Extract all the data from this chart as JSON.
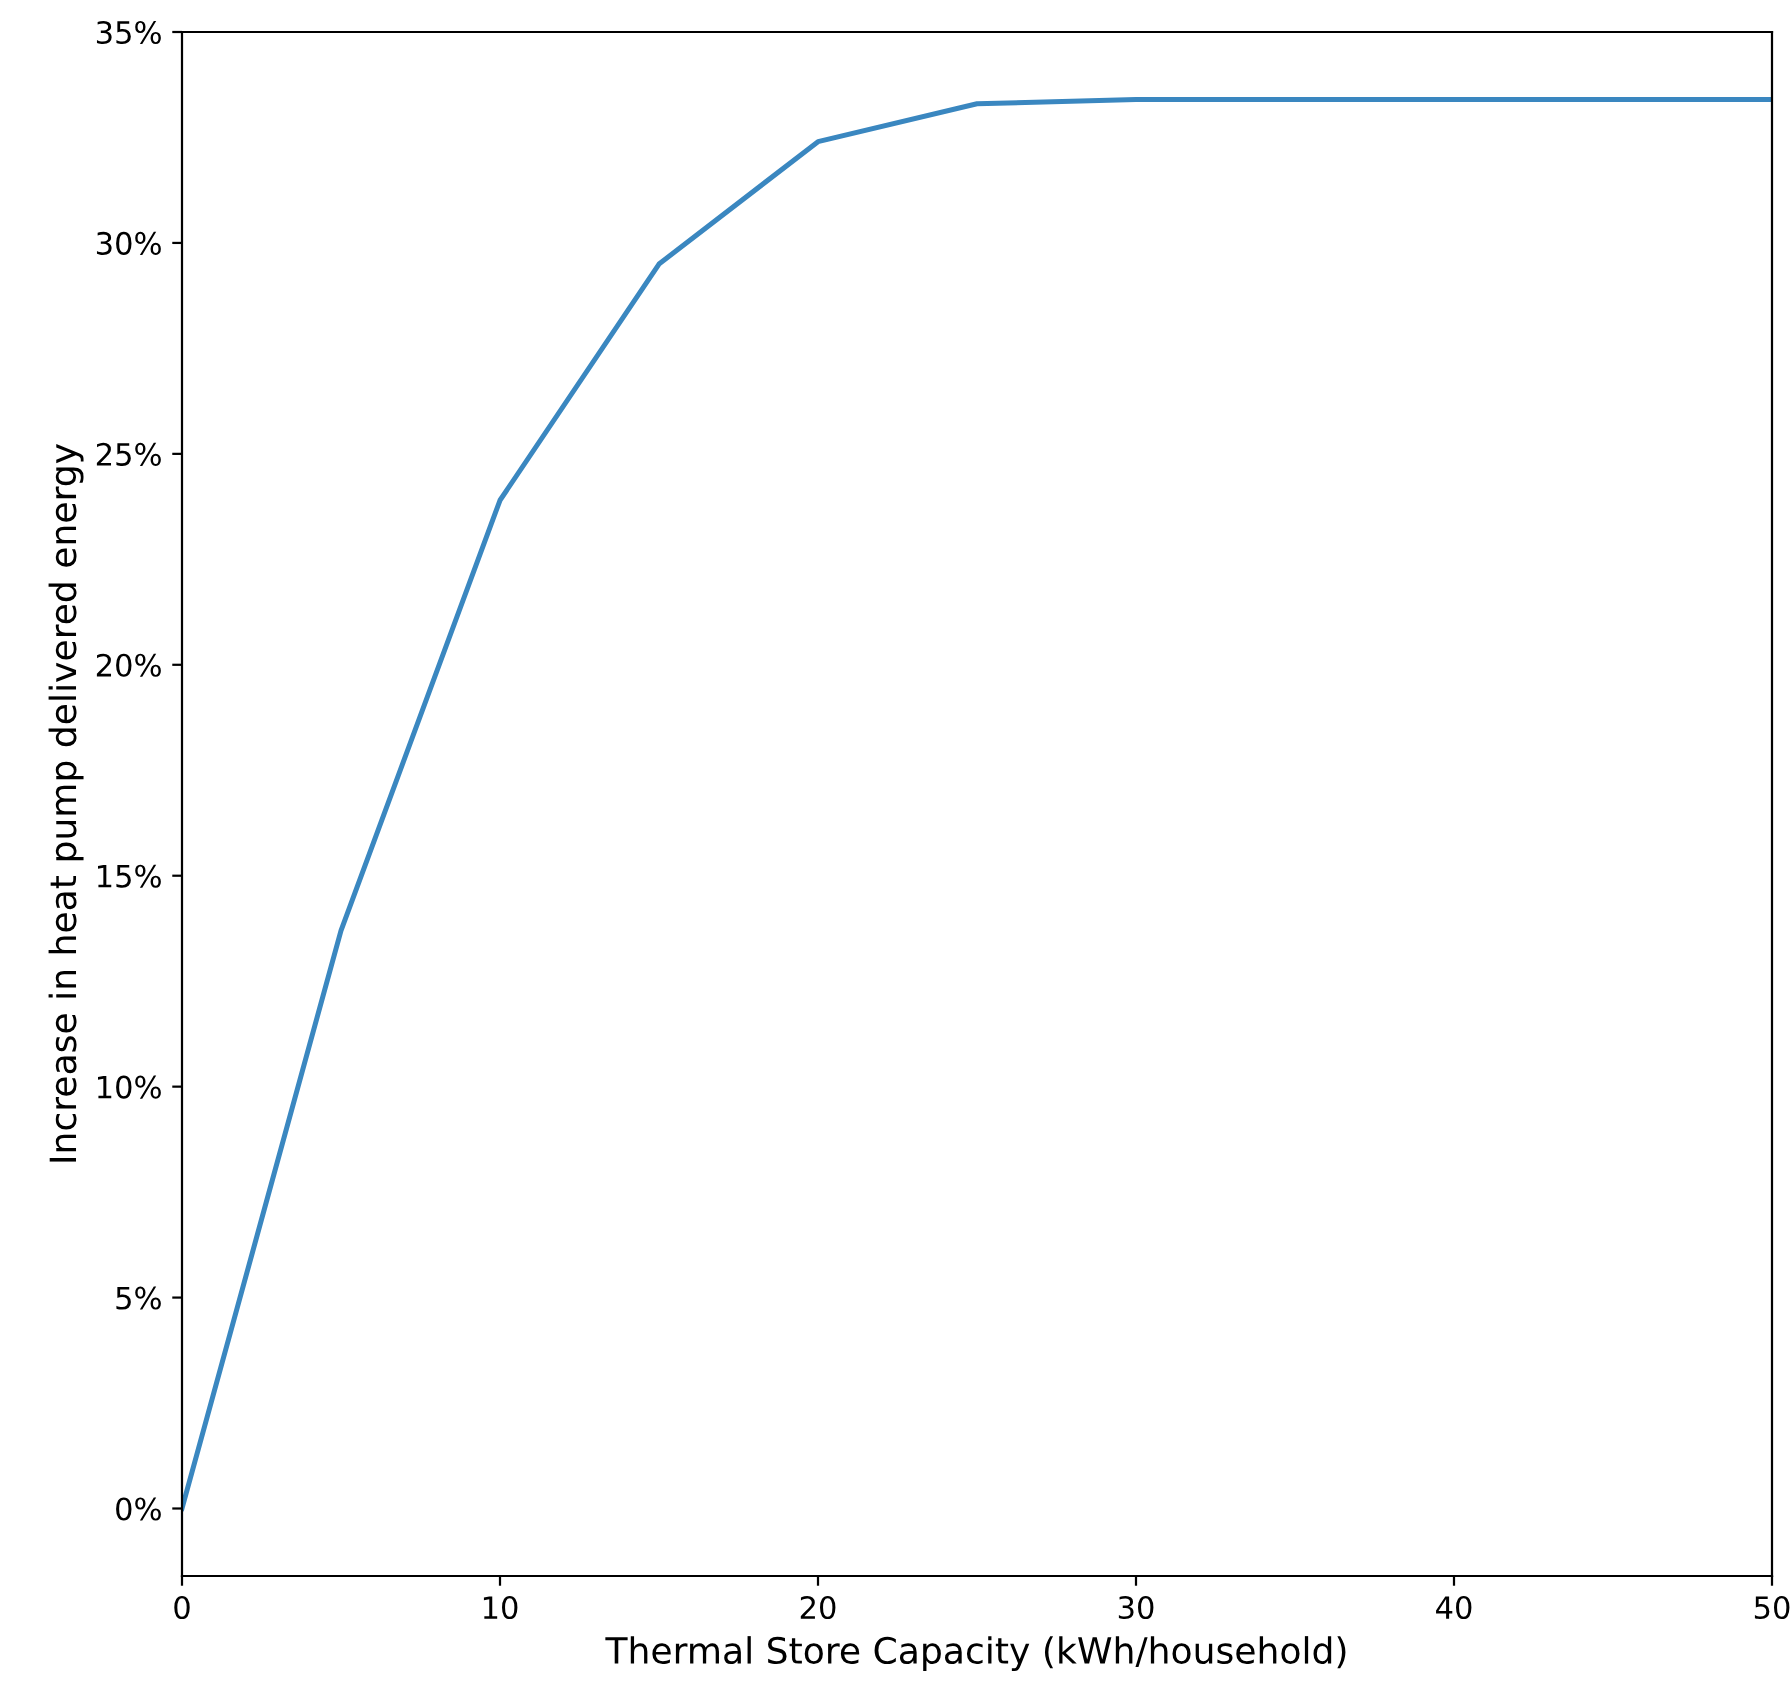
{
  "chart_data": {
    "type": "line",
    "xlabel": "Thermal Store Capacity (kWh/household)",
    "ylabel": "Increase in heat pump delivered energy",
    "x": [
      0,
      5,
      10,
      15,
      20,
      25,
      30,
      35,
      40,
      45,
      50
    ],
    "series": [
      {
        "color": "#3a87c0",
        "values": [
          0,
          13.7,
          23.9,
          29.5,
          32.4,
          33.3,
          33.4,
          33.4,
          33.4,
          33.4,
          33.4
        ]
      }
    ],
    "xlim": [
      0,
      50
    ],
    "xticks": [
      0,
      10,
      20,
      30,
      40,
      50
    ],
    "ylim": [
      -1.6,
      35
    ],
    "yticks": [
      {
        "value": 0,
        "label": "0%"
      },
      {
        "value": 5,
        "label": "5%"
      },
      {
        "value": 10,
        "label": "10%"
      },
      {
        "value": 15,
        "label": "15%"
      },
      {
        "value": 20,
        "label": "20%"
      },
      {
        "value": 25,
        "label": "25%"
      },
      {
        "value": 30,
        "label": "30%"
      },
      {
        "value": 35,
        "label": "35%"
      }
    ],
    "marker": "none",
    "line_style": "solid"
  }
}
